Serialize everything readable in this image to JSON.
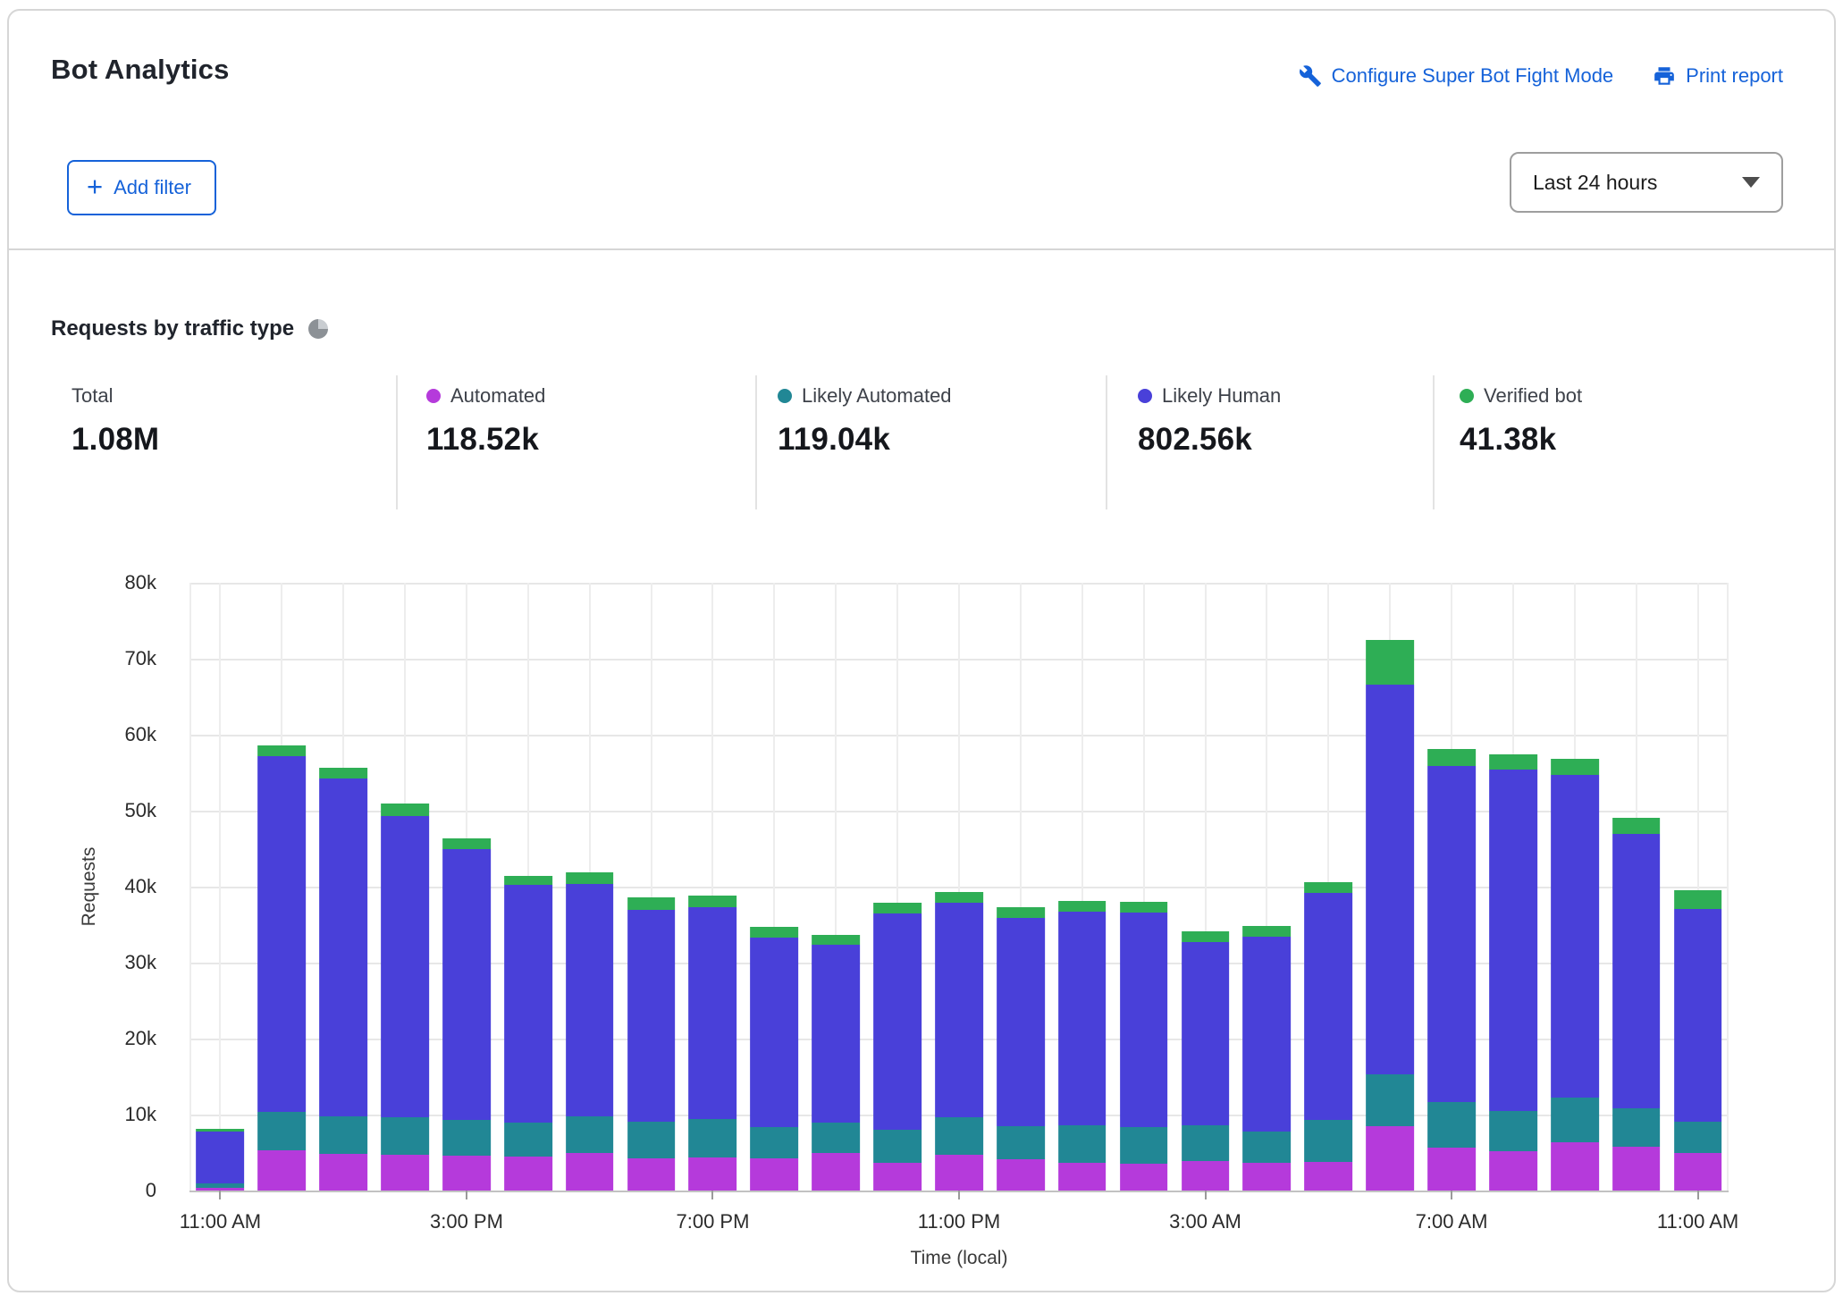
{
  "header": {
    "title": "Bot Analytics",
    "links": [
      {
        "label": "Configure Super Bot Fight Mode",
        "icon": "wrench-icon"
      },
      {
        "label": "Print report",
        "icon": "printer-icon"
      }
    ]
  },
  "toolbar": {
    "add_filter_label": "Add filter",
    "add_filter_icon": "plus-icon",
    "time_range": "Last 24 hours",
    "time_range_icon": "caret-down-icon"
  },
  "section": {
    "title": "Requests by traffic type",
    "icon": "pie-chart-icon"
  },
  "stats": {
    "items": [
      {
        "label": "Total",
        "value": "1.08M",
        "color": null
      },
      {
        "label": "Automated",
        "value": "118.52k",
        "color": "#b53adb"
      },
      {
        "label": "Likely Automated",
        "value": "119.04k",
        "color": "#218795"
      },
      {
        "label": "Likely Human",
        "value": "802.56k",
        "color": "#4940d9"
      },
      {
        "label": "Verified bot",
        "value": "41.38k",
        "color": "#2eae55"
      }
    ]
  },
  "colors": {
    "link_blue": "#1562d9",
    "grid": "#e7e7e7",
    "axis": "#c2c2c2"
  },
  "chart_data": {
    "type": "bar",
    "stacked": true,
    "title": "Requests by traffic type",
    "xlabel": "Time (local)",
    "ylabel": "Requests",
    "ylim": [
      0,
      80000
    ],
    "grid": true,
    "legend_position": "top",
    "y_ticks": [
      "0",
      "10k",
      "20k",
      "30k",
      "40k",
      "50k",
      "60k",
      "70k",
      "80k"
    ],
    "x_tick_every": 4,
    "x_tick_labels": [
      "11:00 AM",
      "3:00 PM",
      "7:00 PM",
      "11:00 PM",
      "3:00 AM",
      "7:00 AM",
      "11:00 AM"
    ],
    "categories": [
      "11:00 AM",
      "12:00 PM",
      "1:00 PM",
      "2:00 PM",
      "3:00 PM",
      "4:00 PM",
      "5:00 PM",
      "6:00 PM",
      "7:00 PM",
      "8:00 PM",
      "9:00 PM",
      "10:00 PM",
      "11:00 PM",
      "12:00 AM",
      "1:00 AM",
      "2:00 AM",
      "3:00 AM",
      "4:00 AM",
      "5:00 AM",
      "6:00 AM",
      "7:00 AM",
      "8:00 AM",
      "9:00 AM",
      "10:00 AM",
      "11:00 AM"
    ],
    "series": [
      {
        "name": "Automated",
        "color": "#b53adb",
        "values": [
          400,
          5300,
          4800,
          4700,
          4600,
          4500,
          4900,
          4200,
          4400,
          4200,
          5000,
          3600,
          4700,
          4100,
          3600,
          3500,
          3900,
          3600,
          3800,
          8500,
          5600,
          5200,
          6300,
          5800,
          4900
        ]
      },
      {
        "name": "Likely Automated",
        "color": "#218795",
        "values": [
          500,
          5000,
          5000,
          4900,
          4700,
          4400,
          4900,
          4900,
          5000,
          4100,
          4000,
          4400,
          5000,
          4400,
          5000,
          4900,
          4700,
          4200,
          5500,
          6800,
          6000,
          5300,
          5900,
          5000,
          4200
        ]
      },
      {
        "name": "Likely Human",
        "color": "#4940d9",
        "values": [
          6900,
          46900,
          44400,
          39700,
          35700,
          31300,
          30500,
          27900,
          27900,
          25000,
          23400,
          28500,
          28200,
          27400,
          28100,
          28200,
          24100,
          25600,
          29900,
          51300,
          44300,
          44900,
          42500,
          36100,
          28000
        ]
      },
      {
        "name": "Verified bot",
        "color": "#2eae55",
        "values": [
          300,
          1400,
          1500,
          1700,
          1400,
          1200,
          1600,
          1600,
          1500,
          1400,
          1300,
          1400,
          1400,
          1400,
          1400,
          1400,
          1400,
          1400,
          1400,
          5900,
          2200,
          2000,
          2100,
          2200,
          2400
        ]
      }
    ]
  }
}
